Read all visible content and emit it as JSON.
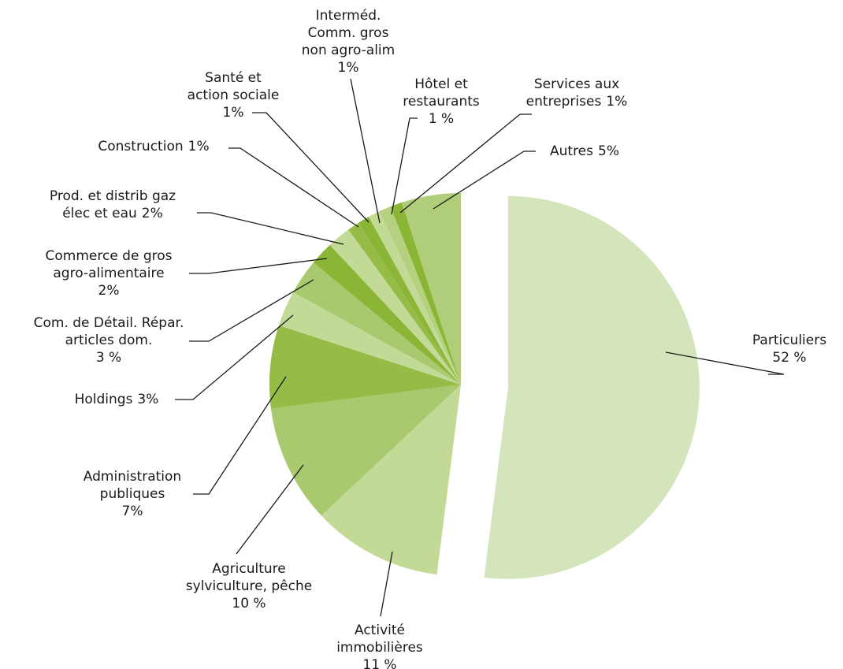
{
  "chart_data": {
    "type": "pie",
    "categories": [
      "Particuliers",
      "Activité\nimmobilières",
      "Agriculture\nsylviculture, pêche",
      "Administration\npubliques",
      "Holdings",
      "Com. de Détail. Répar.\narticles dom.",
      "Commerce de gros\nagro-alimentaire",
      "Prod. et distrib gaz\nélec et eau",
      "Construction",
      "Santé et\naction sociale",
      "Interméd.\nComm. gros\nnon agro-alim",
      "Hôtel et\nrestaurants",
      "Services aux\nentreprises",
      "Autres"
    ],
    "values": [
      52,
      11,
      10,
      7,
      3,
      3,
      2,
      2,
      1,
      1,
      1,
      1,
      1,
      5
    ],
    "value_labels": [
      "52 %",
      "11 %",
      "10 %",
      "7%",
      "3%",
      "3 %",
      "2%",
      "2%",
      "1%",
      "1%",
      "1%",
      "1 %",
      "1%",
      "5%"
    ],
    "colors": [
      "#d5e5bb",
      "#c3da97",
      "#a9c96e",
      "#96bc47",
      "#c3da97",
      "#a9c96e",
      "#8ab535",
      "#c3da97",
      "#96bc47",
      "#8ab535",
      "#c3da97",
      "#b5d17f",
      "#8ab535",
      "#b0cd7a"
    ]
  }
}
